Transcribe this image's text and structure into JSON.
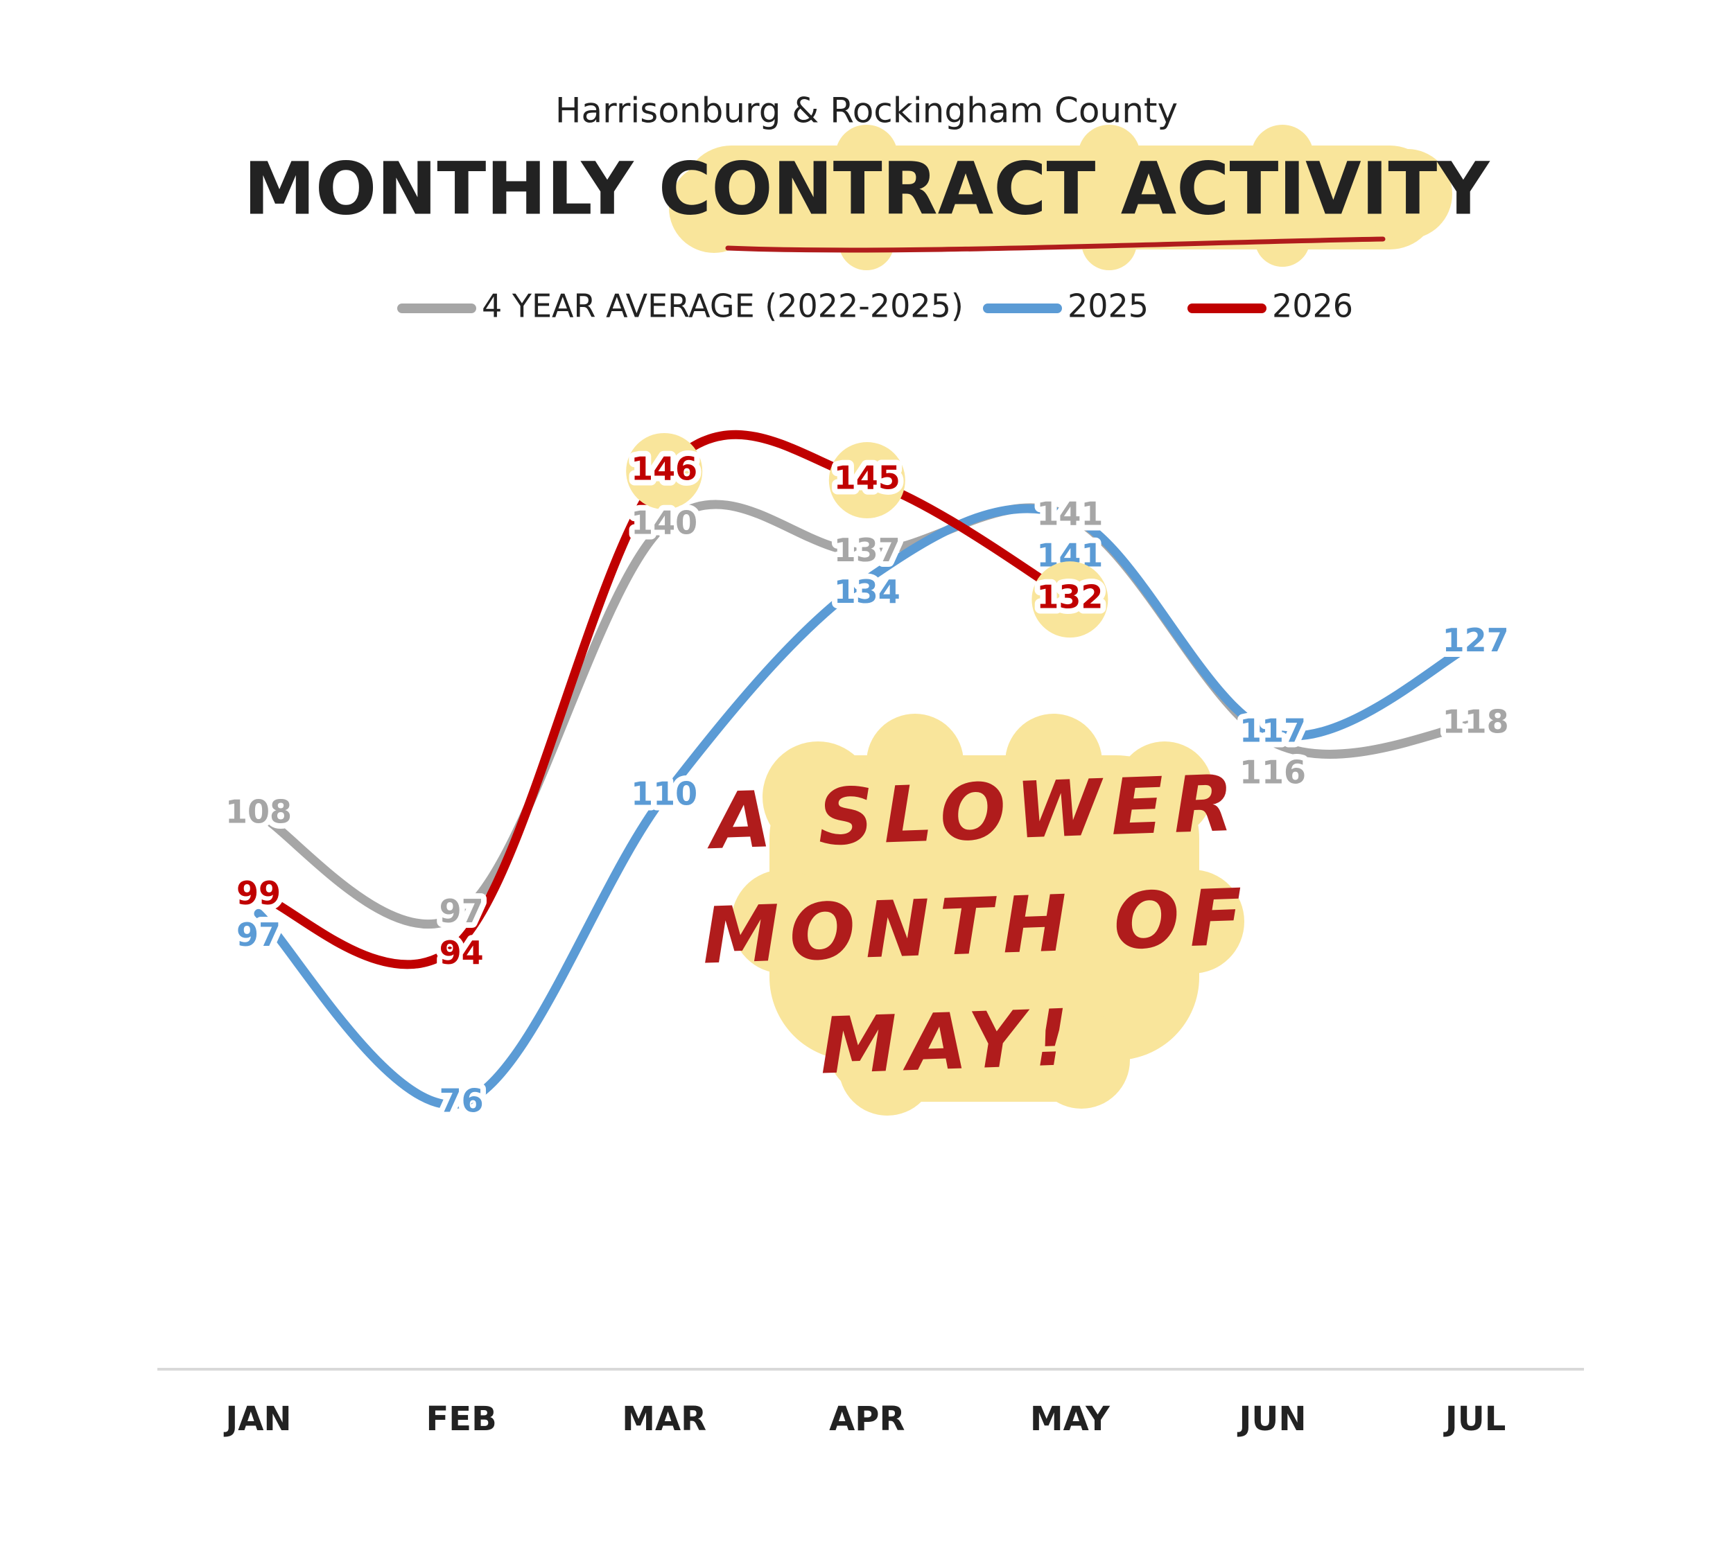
{
  "chart_data": {
    "type": "line",
    "subtitle": "Harrisonburg & Rockingham County",
    "title": "MONTHLY CONTRACT ACTIVITY",
    "categories": [
      "JAN",
      "FEB",
      "MAR",
      "APR",
      "MAY",
      "JUN",
      "JUL"
    ],
    "series": [
      {
        "name": "4 YEAR AVERAGE (2022-2025)",
        "color": "#a6a6a6",
        "values": [
          108,
          97,
          140,
          137,
          141,
          116,
          118
        ]
      },
      {
        "name": "2025",
        "color": "#5b9bd5",
        "values": [
          97,
          76,
          110,
          134,
          141,
          117,
          127
        ]
      },
      {
        "name": "2026",
        "color": "#c00000",
        "values": [
          99,
          94,
          146,
          145,
          132,
          null,
          null
        ]
      }
    ],
    "annotation": [
      "A SLOWER",
      "MONTH OF",
      "MAY!"
    ]
  }
}
